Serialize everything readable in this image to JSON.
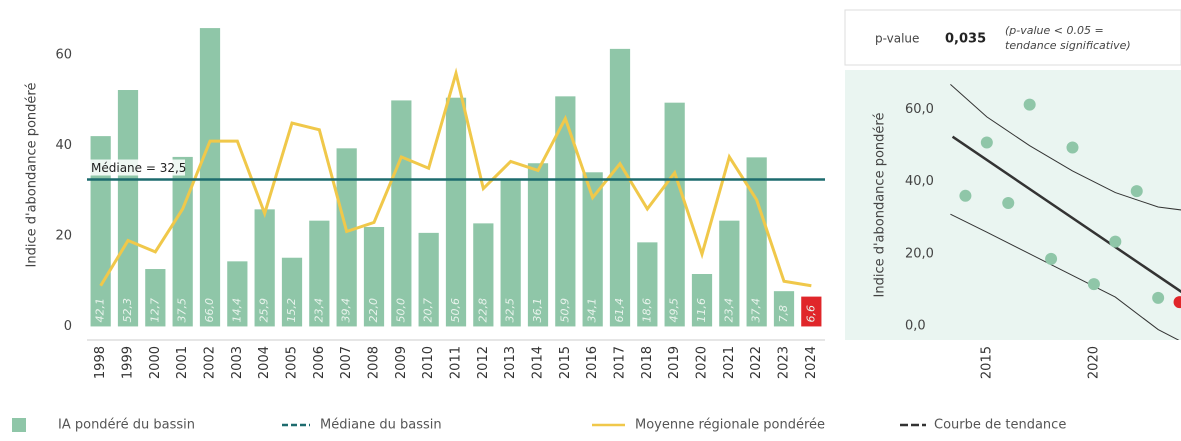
{
  "chart_data": [
    {
      "type": "bar",
      "y_label": "Indice d'abondance pondéré",
      "categories": [
        "1998",
        "1999",
        "2000",
        "2001",
        "2002",
        "2003",
        "2004",
        "2005",
        "2006",
        "2007",
        "2008",
        "2009",
        "2010",
        "2011",
        "2012",
        "2013",
        "2014",
        "2015",
        "2016",
        "2017",
        "2018",
        "2019",
        "2020",
        "2021",
        "2022",
        "2023",
        "2024"
      ],
      "series": [
        {
          "name": "IA pondéré du bassin",
          "color": "#8fc6a8",
          "highlight_color": "#e0262a",
          "highlight_index": 26,
          "values": [
            42.1,
            52.3,
            12.7,
            37.5,
            66.0,
            14.4,
            25.9,
            15.2,
            23.4,
            39.4,
            22.0,
            50.0,
            20.7,
            50.6,
            22.8,
            32.5,
            36.1,
            50.9,
            34.1,
            61.4,
            18.6,
            49.5,
            11.6,
            23.4,
            37.4,
            7.8,
            6.6
          ],
          "value_labels": [
            "42,1",
            "52,3",
            "12,7",
            "37,5",
            "66,0",
            "14,4",
            "25,9",
            "15,2",
            "23,4",
            "39,4",
            "22,0",
            "50,0",
            "20,7",
            "50,6",
            "22,8",
            "32,5",
            "36,1",
            "50,9",
            "34,1",
            "61,4",
            "18,6",
            "49,5",
            "11,6",
            "23,4",
            "37,4",
            "7,8",
            "6,6"
          ]
        },
        {
          "name": "Moyenne régionale pondérée",
          "type": "line",
          "color": "#f0c84a",
          "values": [
            9,
            19,
            16.5,
            26,
            41,
            41,
            25,
            45,
            43.5,
            21,
            23,
            37.5,
            35,
            56,
            30.5,
            36.5,
            34.5,
            46,
            28.5,
            36,
            26,
            34,
            16,
            37.5,
            28,
            10,
            9
          ]
        }
      ],
      "median": {
        "name": "Médiane du bassin",
        "label": "Médiane = 32,5",
        "value": 32.5,
        "color": "#1d6b6e"
      },
      "ylim": [
        -3,
        70
      ],
      "yticks": [
        0,
        20,
        40,
        60
      ]
    },
    {
      "type": "scatter",
      "y_label": "Indice d'abondance pondéré",
      "pvalue": {
        "label": "p-value",
        "value": "0,035",
        "note_line1": "(p-value < 0.05 =",
        "note_line2": "tendance significative)"
      },
      "x": [
        2014,
        2015,
        2016,
        2017,
        2018,
        2019,
        2020,
        2021,
        2022,
        2023,
        2024
      ],
      "values": [
        36.1,
        50.9,
        34.1,
        61.4,
        18.6,
        49.5,
        11.6,
        23.4,
        37.4,
        7.8,
        6.6
      ],
      "color": "#8fc6a8",
      "highlight_color": "#e0262a",
      "highlight_index": 10,
      "trend": {
        "name": "Courbe de tendance",
        "color": "#333333",
        "x": [
          2013.4,
          2024.1
        ],
        "values": [
          52.5,
          9.4
        ]
      },
      "band": {
        "x": [
          2013.3,
          2015,
          2017,
          2019,
          2021,
          2023,
          2024.3
        ],
        "upper": [
          67,
          58,
          50,
          43,
          37,
          33,
          32
        ],
        "lower": [
          31,
          26,
          20,
          14,
          8,
          -1,
          -5
        ]
      },
      "xlim": [
        2013,
        2024.3
      ],
      "xticks": [
        2015,
        2020
      ],
      "ylim": [
        -3.9,
        71
      ],
      "yticks": [
        {
          "value": 0,
          "label": "0,0"
        },
        {
          "value": 20,
          "label": "20,0"
        },
        {
          "value": 40,
          "label": "40,0"
        },
        {
          "value": 60,
          "label": "60,0"
        }
      ]
    }
  ]
}
